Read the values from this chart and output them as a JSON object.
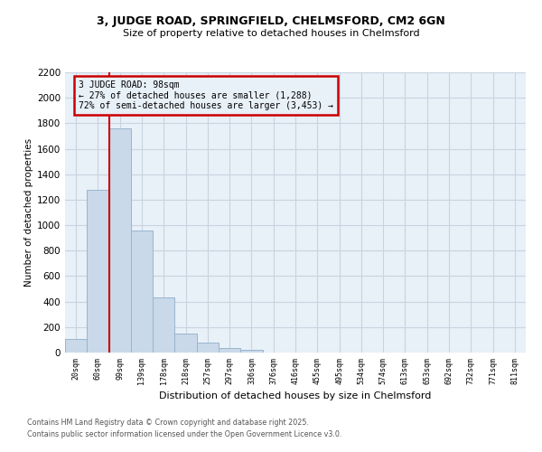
{
  "title_line1": "3, JUDGE ROAD, SPRINGFIELD, CHELMSFORD, CM2 6GN",
  "title_line2": "Size of property relative to detached houses in Chelmsford",
  "xlabel": "Distribution of detached houses by size in Chelmsford",
  "ylabel": "Number of detached properties",
  "categories": [
    "20sqm",
    "60sqm",
    "99sqm",
    "139sqm",
    "178sqm",
    "218sqm",
    "257sqm",
    "297sqm",
    "336sqm",
    "376sqm",
    "416sqm",
    "455sqm",
    "495sqm",
    "534sqm",
    "574sqm",
    "613sqm",
    "653sqm",
    "692sqm",
    "732sqm",
    "771sqm",
    "811sqm"
  ],
  "values": [
    110,
    1280,
    1760,
    960,
    430,
    150,
    75,
    35,
    20,
    0,
    0,
    0,
    0,
    0,
    0,
    0,
    0,
    0,
    0,
    0,
    0
  ],
  "bar_color": "#c9d9ea",
  "bar_edge_color": "#9ab5cc",
  "grid_color": "#c8d4e0",
  "bg_color": "#ffffff",
  "plot_bg_color": "#e8f0f8",
  "annotation_box_color": "#cc0000",
  "annotation_line_color": "#cc0000",
  "property_label": "3 JUDGE ROAD: 98sqm",
  "pct_smaller_text": "← 27% of detached houses are smaller (1,288)",
  "pct_larger_text": "72% of semi-detached houses are larger (3,453) →",
  "ylim": [
    0,
    2200
  ],
  "yticks": [
    0,
    200,
    400,
    600,
    800,
    1000,
    1200,
    1400,
    1600,
    1800,
    2000,
    2200
  ],
  "footer_line1": "Contains HM Land Registry data © Crown copyright and database right 2025.",
  "footer_line2": "Contains public sector information licensed under the Open Government Licence v3.0."
}
